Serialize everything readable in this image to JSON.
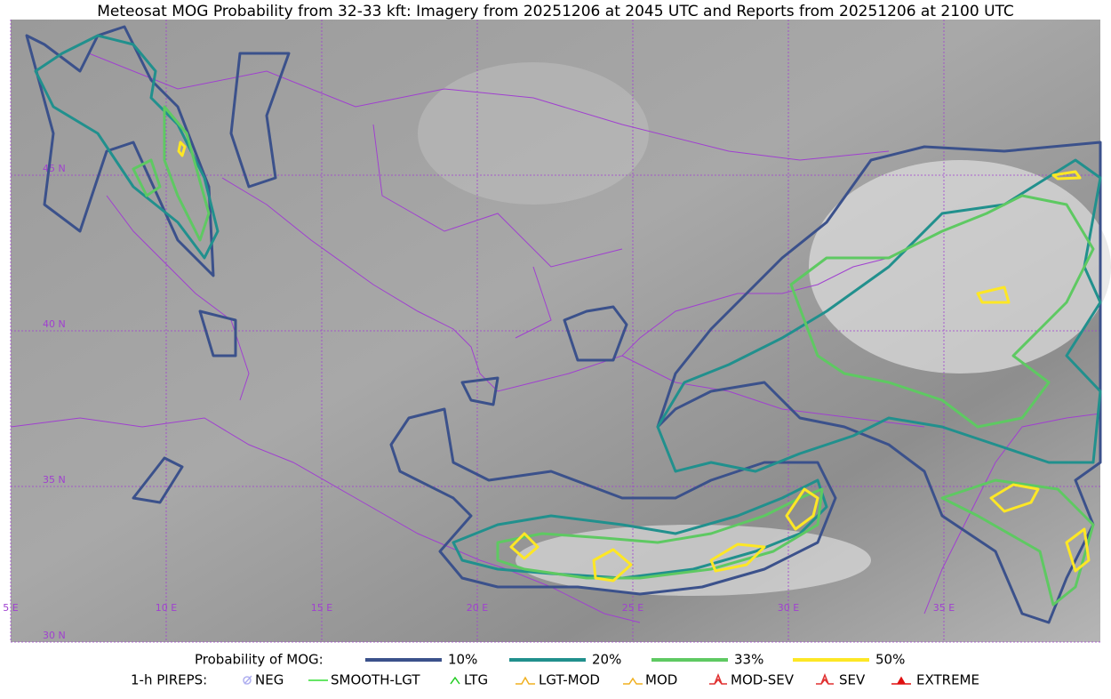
{
  "title": "Meteosat MOG Probability from 32-33 kft: Imagery from 20251206 at 2045 UTC and Reports from 20251206 at 2100 UTC",
  "longitude_labels": [
    "5 E",
    "10 E",
    "15 E",
    "20 E",
    "25 E",
    "30 E",
    "35 E"
  ],
  "latitude_labels": [
    "45 N",
    "40 N",
    "35 N",
    "30 N"
  ],
  "legend": {
    "probability_label": "Probability of MOG:",
    "probability_levels": [
      {
        "label": "10%",
        "color": "#3b518b"
      },
      {
        "label": "20%",
        "color": "#21908d"
      },
      {
        "label": "33%",
        "color": "#5ec962"
      },
      {
        "label": "50%",
        "color": "#fde725"
      }
    ],
    "pireps_label": "1-h PIREPS:",
    "pireps": [
      {
        "label": "NEG",
        "color": "#b0b0f0"
      },
      {
        "label": "SMOOTH-LGT",
        "color": "#33dd33"
      },
      {
        "label": "LTG",
        "color": "#22cc22"
      },
      {
        "label": "LGT-MOD",
        "color": "#f0b020"
      },
      {
        "label": "MOD",
        "color": "#f0b020"
      },
      {
        "label": "MOD-SEV",
        "color": "#e03030"
      },
      {
        "label": "SEV",
        "color": "#e03030"
      },
      {
        "label": "EXTREME",
        "color": "#e01010"
      }
    ]
  }
}
